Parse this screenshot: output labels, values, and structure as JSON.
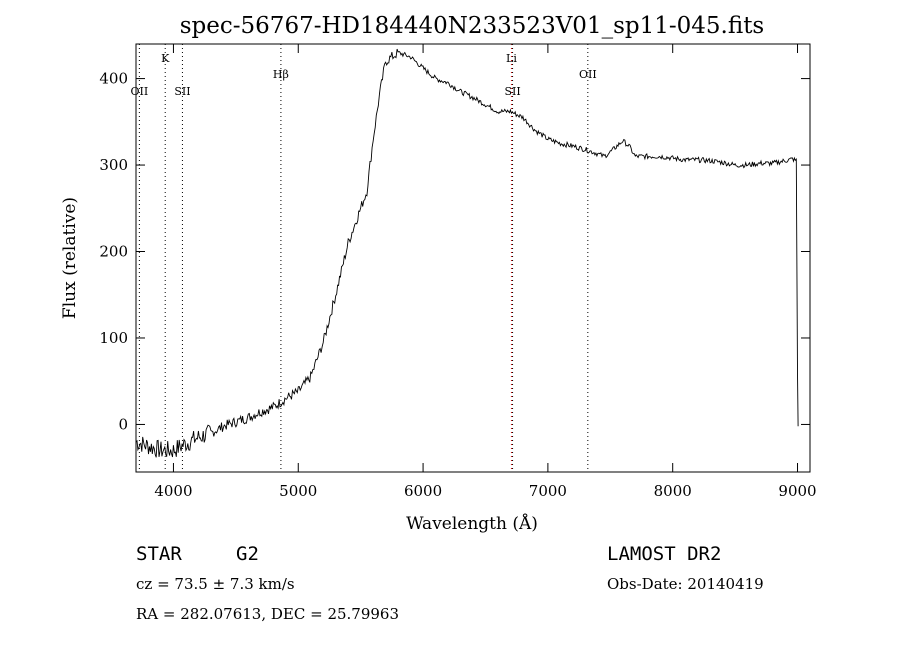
{
  "chart_data": {
    "type": "line",
    "title": "spec-56767-HD184440N233523V01_sp11-045.fits",
    "xlabel": "Wavelength (Å)",
    "ylabel": "Flux (relative)",
    "xlim": [
      3700,
      9100
    ],
    "ylim": [
      -55,
      440
    ],
    "xticks": [
      4000,
      5000,
      6000,
      7000,
      8000,
      9000
    ],
    "yticks": [
      0,
      100,
      200,
      300,
      400
    ],
    "grid": false,
    "series": [
      {
        "color": "#000000",
        "x": [
          3700,
          3800,
          3900,
          4000,
          4100,
          4200,
          4300,
          4400,
          4500,
          4600,
          4700,
          4800,
          4900,
          5000,
          5100,
          5150,
          5200,
          5300,
          5400,
          5500,
          5550,
          5600,
          5650,
          5700,
          5750,
          5800,
          5900,
          6000,
          6100,
          6200,
          6300,
          6400,
          6500,
          6600,
          6700,
          6800,
          6900,
          7000,
          7100,
          7200,
          7300,
          7400,
          7450,
          7500,
          7600,
          7650,
          7700,
          7800,
          7900,
          8000,
          8100,
          8200,
          8300,
          8400,
          8500,
          8600,
          8700,
          8800,
          8900,
          8960,
          8990,
          9000,
          9005
        ],
        "y": [
          -20,
          -25,
          -30,
          -30,
          -22,
          -15,
          -10,
          -2,
          3,
          8,
          15,
          20,
          30,
          38,
          55,
          75,
          95,
          150,
          210,
          250,
          270,
          330,
          380,
          420,
          425,
          430,
          425,
          412,
          400,
          395,
          385,
          378,
          370,
          362,
          362,
          355,
          340,
          330,
          325,
          322,
          318,
          313,
          310,
          315,
          328,
          322,
          310,
          310,
          310,
          308,
          306,
          306,
          305,
          303,
          300,
          300,
          302,
          302,
          305,
          307,
          305,
          60,
          -2
        ]
      }
    ],
    "lines": [
      {
        "label": "OII",
        "x": 3727,
        "color": "#000000"
      },
      {
        "label": "K",
        "x": 3934,
        "color": "#000000"
      },
      {
        "label": "SII",
        "x": 4072,
        "color": "#000000"
      },
      {
        "label": "Hβ",
        "x": 4861,
        "color": "#000000"
      },
      {
        "label": "Li",
        "x": 6708,
        "color": "#cc0000"
      },
      {
        "label": "SII",
        "x": 6717,
        "color": "#000000"
      },
      {
        "label": "OII",
        "x": 7320,
        "color": "#000000"
      }
    ]
  },
  "info": {
    "class": "STAR",
    "subclass": "G2",
    "survey": "LAMOST DR2",
    "cz": "cz = 73.5 ± 7.3 km/s",
    "obs_date": "Obs-Date: 20140419",
    "radec": "RA = 282.07613, DEC =  25.79963"
  }
}
